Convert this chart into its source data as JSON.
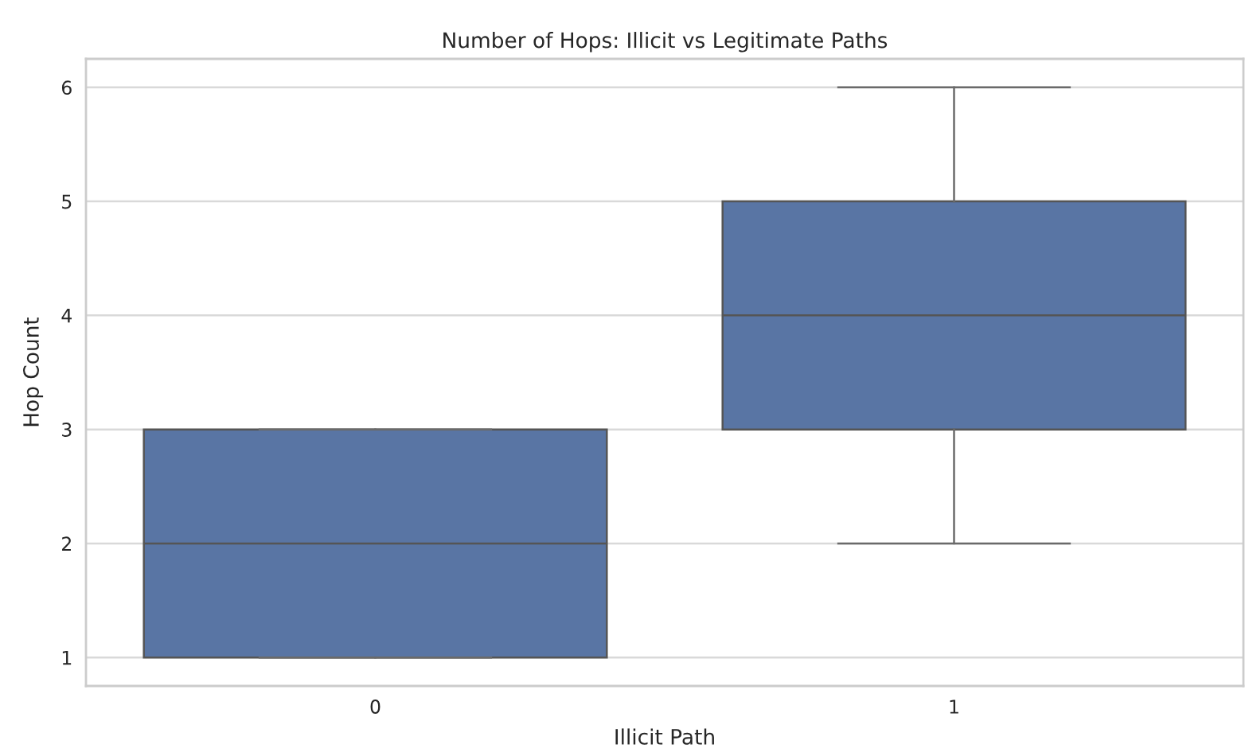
{
  "chart_data": {
    "type": "box",
    "title": "Number of Hops: Illicit vs Legitimate Paths",
    "xlabel": "Illicit Path",
    "ylabel": "Hop Count",
    "categories": [
      "0",
      "1"
    ],
    "boxes": [
      {
        "low": 1,
        "q1": 1,
        "median": 2,
        "q3": 3,
        "high": 3
      },
      {
        "low": 2,
        "q1": 3,
        "median": 4,
        "q3": 5,
        "high": 6
      }
    ],
    "color": "#5975a4",
    "ylim": [
      0.75,
      6.25
    ],
    "yticks": [
      1,
      2,
      3,
      4,
      5,
      6
    ],
    "grid": "y",
    "legend": false
  }
}
